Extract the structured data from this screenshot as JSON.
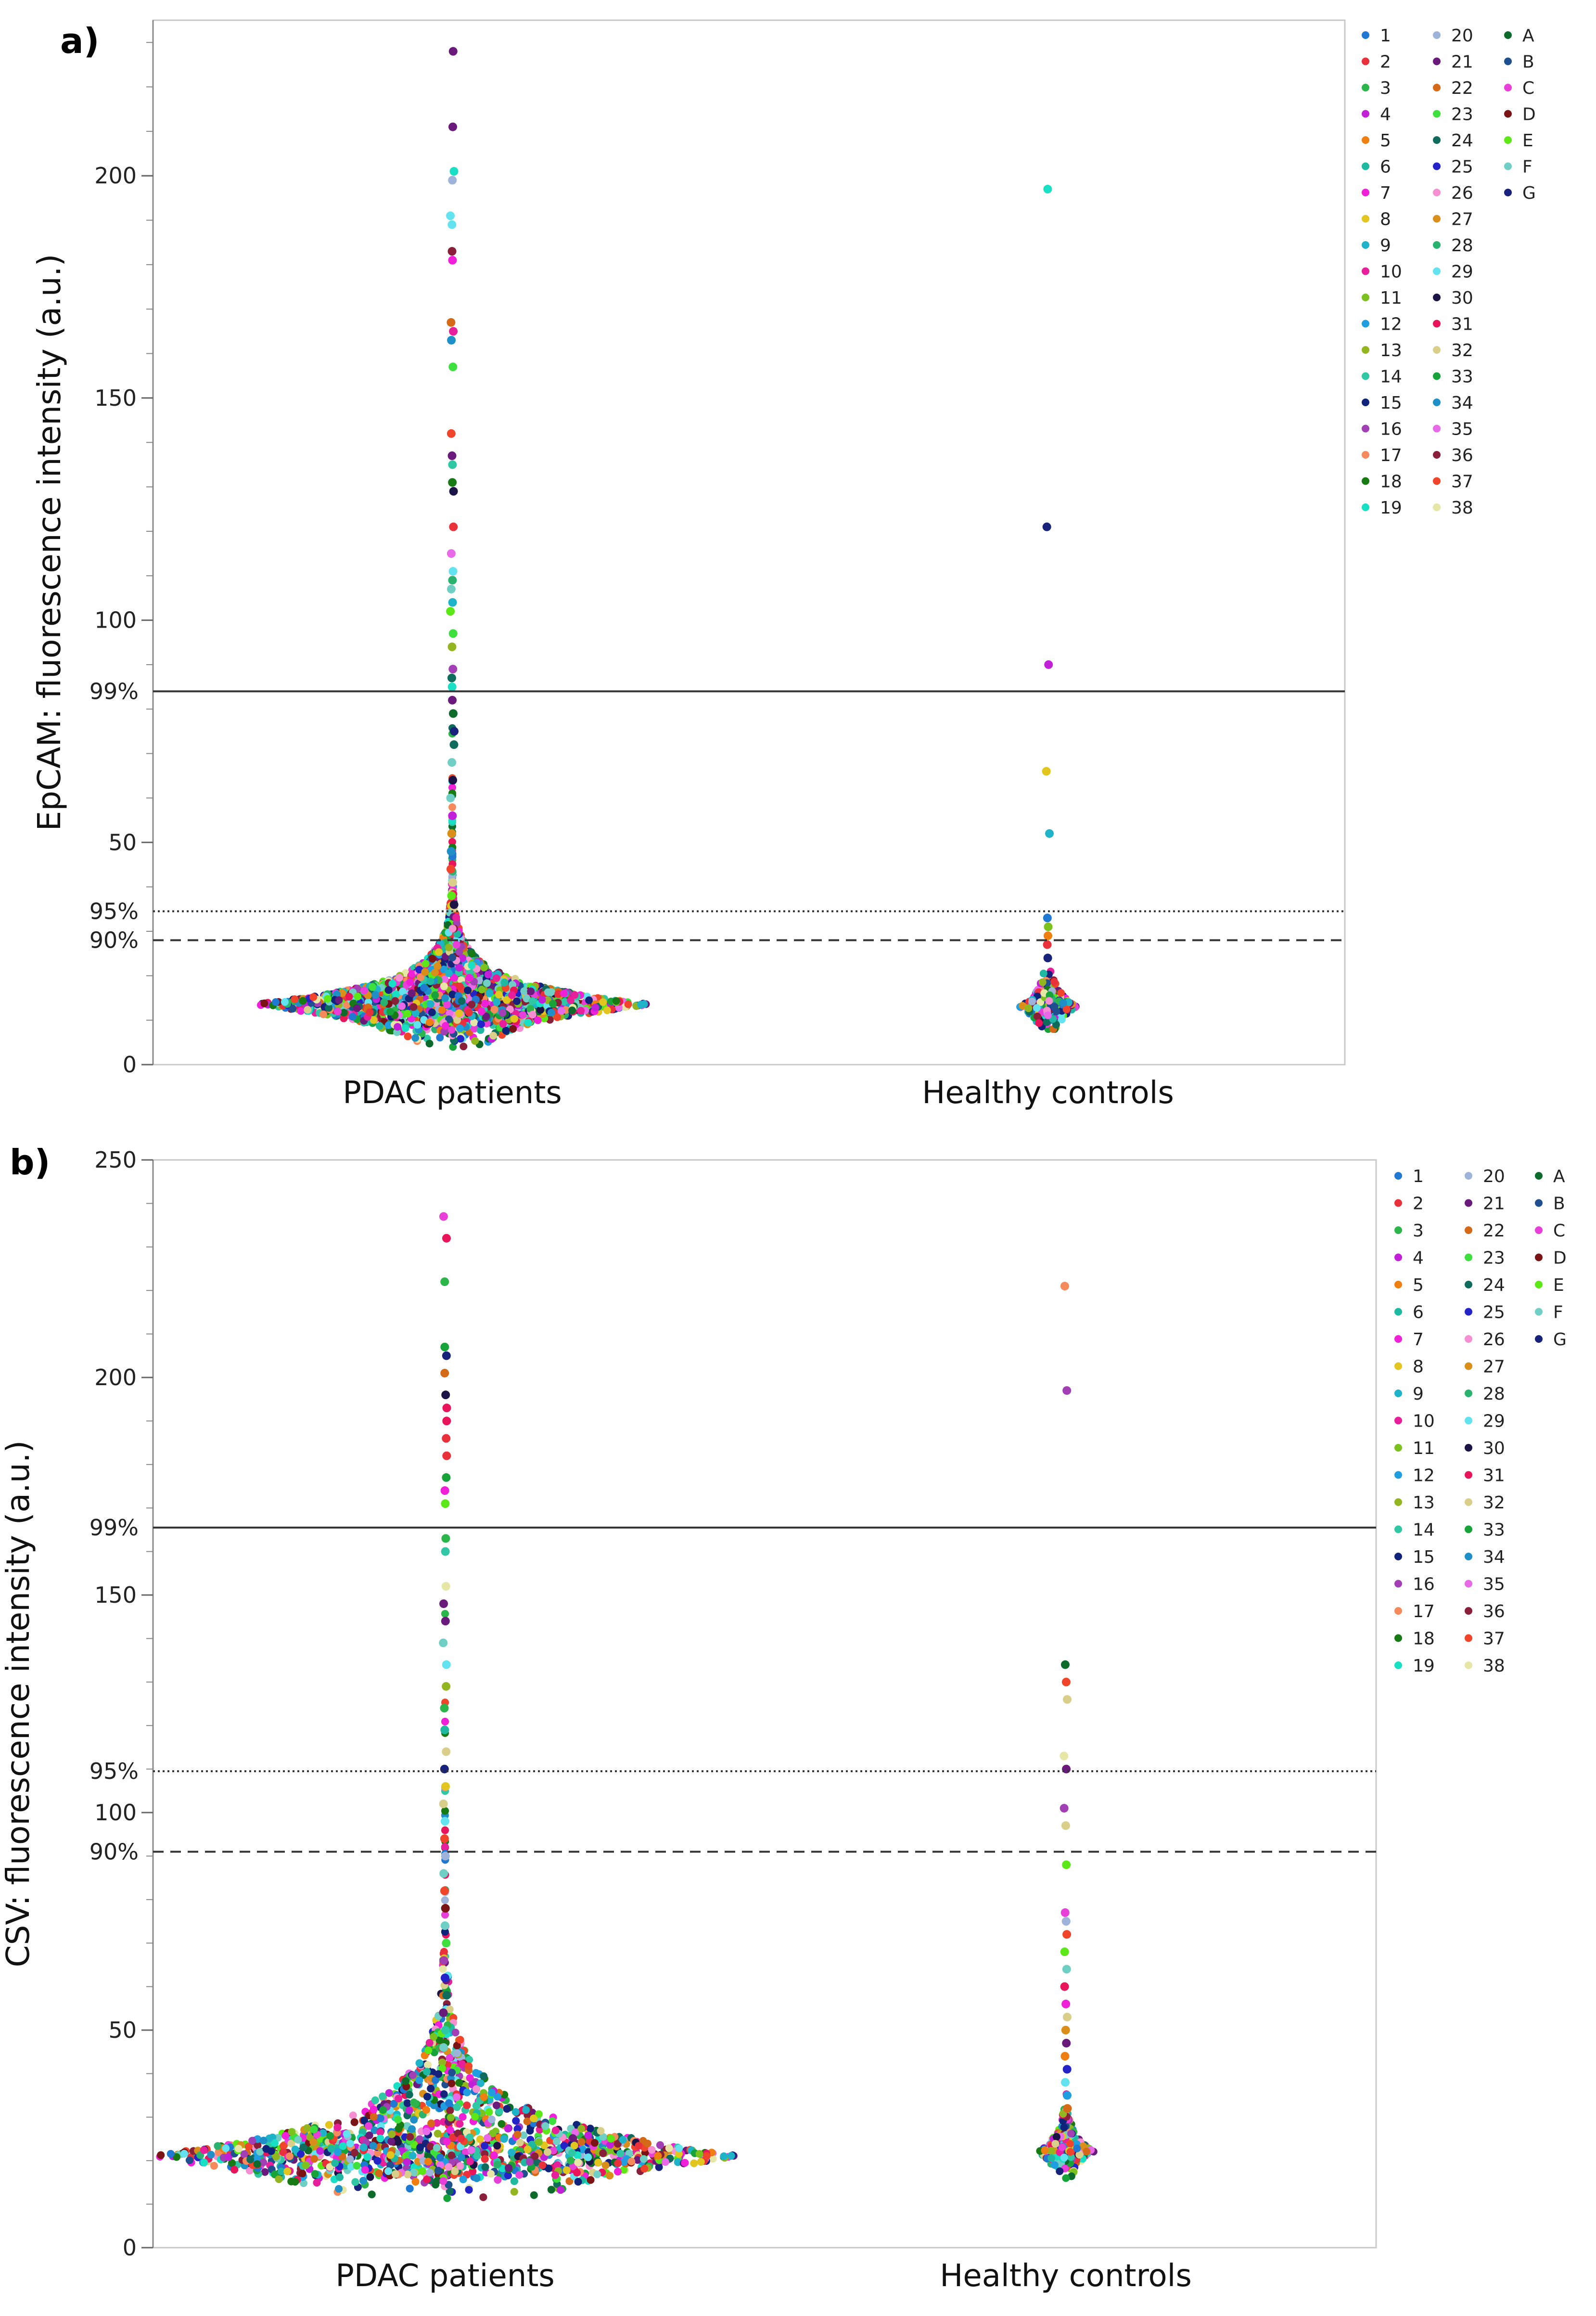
{
  "figure": {
    "panel_labels": [
      "a)",
      "b)"
    ]
  },
  "chart_data": [
    {
      "panel": "a)",
      "type": "scatter",
      "subtype": "beeswarm",
      "title": "",
      "xlabel": "",
      "ylabel": "EpCAM: fluorescence intensity (a.u.)",
      "categories": [
        "PDAC patients",
        "Healthy controls"
      ],
      "ylim": [
        0,
        235
      ],
      "y_ticks": [
        0,
        50,
        100,
        150,
        200
      ],
      "reference_lines": [
        {
          "label": "99%",
          "value": 84,
          "style": "solid"
        },
        {
          "label": "95%",
          "value": 34.5,
          "style": "dotted"
        },
        {
          "label": "90%",
          "value": 28,
          "style": "dashed"
        }
      ],
      "distribution": {
        "PDAC patients": {
          "mode": 13.5,
          "min": 4,
          "max": 228
        },
        "Healthy controls": {
          "mode": 13,
          "min": 8,
          "max": 197
        }
      },
      "outliers": {
        "PDAC patients": [
          228,
          211,
          201,
          199,
          191,
          189,
          183,
          181,
          167,
          165,
          163,
          157,
          142,
          137,
          135,
          131,
          129,
          121,
          115,
          111,
          109,
          107,
          104,
          102,
          97,
          94,
          89,
          87,
          85,
          82,
          79,
          75,
          72,
          68,
          64,
          60,
          56,
          52,
          48,
          44,
          41,
          38,
          36
        ],
        "Healthy controls": [
          197,
          121,
          90,
          66,
          52,
          33,
          31,
          29,
          27,
          24
        ]
      },
      "legend": [
        {
          "label": "1",
          "color": "#1f78d1"
        },
        {
          "label": "2",
          "color": "#e8313a"
        },
        {
          "label": "3",
          "color": "#2cb54a"
        },
        {
          "label": "4",
          "color": "#c21fd9"
        },
        {
          "label": "5",
          "color": "#f07f12"
        },
        {
          "label": "6",
          "color": "#1fb8a0"
        },
        {
          "label": "7",
          "color": "#f01fd8"
        },
        {
          "label": "8",
          "color": "#e3c51f"
        },
        {
          "label": "9",
          "color": "#1fb3c9"
        },
        {
          "label": "10",
          "color": "#e81f9a"
        },
        {
          "label": "11",
          "color": "#7cc21f"
        },
        {
          "label": "12",
          "color": "#1f9fe0"
        },
        {
          "label": "13",
          "color": "#93b51f"
        },
        {
          "label": "14",
          "color": "#2fc7a4"
        },
        {
          "label": "15",
          "color": "#10237a"
        },
        {
          "label": "16",
          "color": "#a23fb5"
        },
        {
          "label": "17",
          "color": "#f58a5c"
        },
        {
          "label": "18",
          "color": "#187a14"
        },
        {
          "label": "19",
          "color": "#17e0c5"
        },
        {
          "label": "20",
          "color": "#9db3d9"
        },
        {
          "label": "21",
          "color": "#6a1a7a"
        },
        {
          "label": "22",
          "color": "#d46a17"
        },
        {
          "label": "23",
          "color": "#3de03d"
        },
        {
          "label": "24",
          "color": "#0f6b5c"
        },
        {
          "label": "25",
          "color": "#2323c7"
        },
        {
          "label": "26",
          "color": "#f58fd1"
        },
        {
          "label": "27",
          "color": "#d98f1a"
        },
        {
          "label": "28",
          "color": "#2ab36e"
        },
        {
          "label": "29",
          "color": "#63e3ef"
        },
        {
          "label": "30",
          "color": "#1c1447"
        },
        {
          "label": "31",
          "color": "#e8155a"
        },
        {
          "label": "32",
          "color": "#d9cf8a"
        },
        {
          "label": "33",
          "color": "#17a339"
        },
        {
          "label": "34",
          "color": "#1f8fc7"
        },
        {
          "label": "35",
          "color": "#e86ae8"
        },
        {
          "label": "36",
          "color": "#8a1f3a"
        },
        {
          "label": "37",
          "color": "#f0452a"
        },
        {
          "label": "38",
          "color": "#e6e6a6"
        },
        {
          "label": "A",
          "color": "#0c6b2a"
        },
        {
          "label": "B",
          "color": "#1f4f8f"
        },
        {
          "label": "C",
          "color": "#e83fd9"
        },
        {
          "label": "D",
          "color": "#7a1414"
        },
        {
          "label": "E",
          "color": "#5ce817"
        },
        {
          "label": "F",
          "color": "#6fcfc4"
        },
        {
          "label": "G",
          "color": "#17237a"
        }
      ]
    },
    {
      "panel": "b)",
      "type": "scatter",
      "subtype": "beeswarm",
      "title": "",
      "xlabel": "",
      "ylabel": "CSV: fluorescence intensity (a.u.)",
      "categories": [
        "PDAC patients",
        "Healthy controls"
      ],
      "ylim": [
        0,
        250
      ],
      "y_ticks": [
        0,
        50,
        100,
        150,
        200,
        250
      ],
      "reference_lines": [
        {
          "label": "99%",
          "value": 165.5,
          "style": "solid"
        },
        {
          "label": "95%",
          "value": 109.5,
          "style": "dotted"
        },
        {
          "label": "90%",
          "value": 91,
          "style": "dashed"
        }
      ],
      "distribution": {
        "PDAC patients": {
          "mode": 21,
          "min": 7,
          "max": 237
        },
        "Healthy controls": {
          "mode": 22,
          "min": 9,
          "max": 221
        }
      },
      "outliers": {
        "PDAC patients": [
          237,
          232,
          222,
          207,
          205,
          201,
          196,
          193,
          190,
          186,
          182,
          177,
          174,
          171,
          163,
          160,
          152,
          148,
          144,
          139,
          134,
          129,
          124,
          119,
          114,
          110,
          106,
          102,
          98,
          94,
          90,
          86,
          82,
          78,
          74,
          70,
          66,
          62,
          58,
          54,
          50,
          46
        ],
        "Healthy controls": [
          221,
          197,
          134,
          130,
          126,
          113,
          110,
          101,
          97,
          88,
          77,
          75,
          72,
          68,
          64,
          60,
          56,
          53,
          50,
          47,
          44,
          41,
          38,
          35,
          32
        ]
      },
      "legend": [
        {
          "label": "1",
          "color": "#1f78d1"
        },
        {
          "label": "2",
          "color": "#e8313a"
        },
        {
          "label": "3",
          "color": "#2cb54a"
        },
        {
          "label": "4",
          "color": "#c21fd9"
        },
        {
          "label": "5",
          "color": "#f07f12"
        },
        {
          "label": "6",
          "color": "#1fb8a0"
        },
        {
          "label": "7",
          "color": "#f01fd8"
        },
        {
          "label": "8",
          "color": "#e3c51f"
        },
        {
          "label": "9",
          "color": "#1fb3c9"
        },
        {
          "label": "10",
          "color": "#e81f9a"
        },
        {
          "label": "11",
          "color": "#7cc21f"
        },
        {
          "label": "12",
          "color": "#1f9fe0"
        },
        {
          "label": "13",
          "color": "#93b51f"
        },
        {
          "label": "14",
          "color": "#2fc7a4"
        },
        {
          "label": "15",
          "color": "#10237a"
        },
        {
          "label": "16",
          "color": "#a23fb5"
        },
        {
          "label": "17",
          "color": "#f58a5c"
        },
        {
          "label": "18",
          "color": "#187a14"
        },
        {
          "label": "19",
          "color": "#17e0c5"
        },
        {
          "label": "20",
          "color": "#9db3d9"
        },
        {
          "label": "21",
          "color": "#6a1a7a"
        },
        {
          "label": "22",
          "color": "#d46a17"
        },
        {
          "label": "23",
          "color": "#3de03d"
        },
        {
          "label": "24",
          "color": "#0f6b5c"
        },
        {
          "label": "25",
          "color": "#2323c7"
        },
        {
          "label": "26",
          "color": "#f58fd1"
        },
        {
          "label": "27",
          "color": "#d98f1a"
        },
        {
          "label": "28",
          "color": "#2ab36e"
        },
        {
          "label": "29",
          "color": "#63e3ef"
        },
        {
          "label": "30",
          "color": "#1c1447"
        },
        {
          "label": "31",
          "color": "#e8155a"
        },
        {
          "label": "32",
          "color": "#d9cf8a"
        },
        {
          "label": "33",
          "color": "#17a339"
        },
        {
          "label": "34",
          "color": "#1f8fc7"
        },
        {
          "label": "35",
          "color": "#e86ae8"
        },
        {
          "label": "36",
          "color": "#8a1f3a"
        },
        {
          "label": "37",
          "color": "#f0452a"
        },
        {
          "label": "38",
          "color": "#e6e6a6"
        },
        {
          "label": "A",
          "color": "#0c6b2a"
        },
        {
          "label": "B",
          "color": "#1f4f8f"
        },
        {
          "label": "C",
          "color": "#e83fd9"
        },
        {
          "label": "D",
          "color": "#7a1414"
        },
        {
          "label": "E",
          "color": "#5ce817"
        },
        {
          "label": "F",
          "color": "#6fcfc4"
        },
        {
          "label": "G",
          "color": "#17237a"
        }
      ]
    }
  ]
}
